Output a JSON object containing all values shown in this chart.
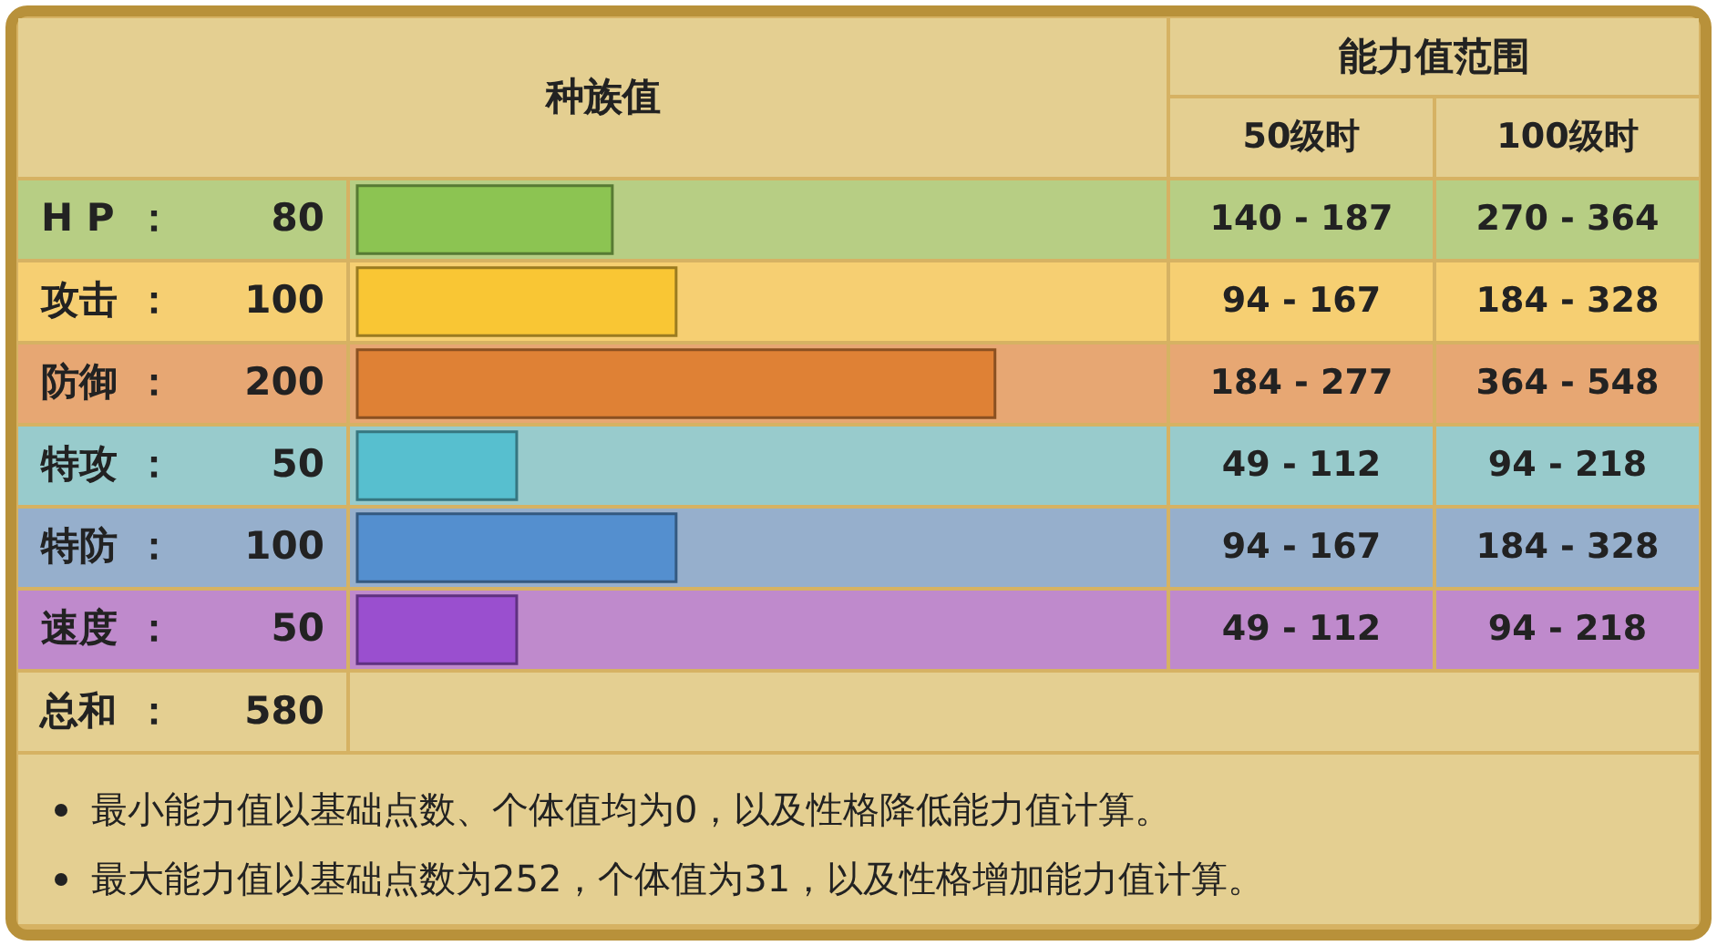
{
  "chart_data": [
    {
      "type": "bar",
      "title": "种族值",
      "orientation": "horizontal",
      "categories": [
        "H P",
        "攻击",
        "防御",
        "特攻",
        "特防",
        "速度"
      ],
      "values": [
        80,
        100,
        200,
        50,
        100,
        50
      ],
      "colors": [
        "#8cc452",
        "#f9c634",
        "#df8135",
        "#57bfcf",
        "#548fcf",
        "#9a4fcf"
      ],
      "tick_labels": "y",
      "data_labels": true,
      "annotations": [
        "：",
        "总和",
        "580",
        "最小能力值以基础点数、个体值均为0，以及性格降低能力值计算。",
        "最大能力值以基础点数为252，个体值为31，以及性格增加能力值计算。"
      ]
    },
    {
      "type": "other",
      "title": "能力值范围",
      "categories": [
        "50级时",
        "100级时"
      ],
      "cell_labels": [
        [
          "140 - 187",
          "270 - 364"
        ],
        [
          "94 - 167",
          "184 - 328"
        ],
        [
          "184 - 277",
          "364 - 548"
        ],
        [
          "49 - 112",
          "94 - 218"
        ],
        [
          "94 - 167",
          "184 - 328"
        ],
        [
          "49 - 112",
          "94 - 218"
        ]
      ]
    }
  ]
}
